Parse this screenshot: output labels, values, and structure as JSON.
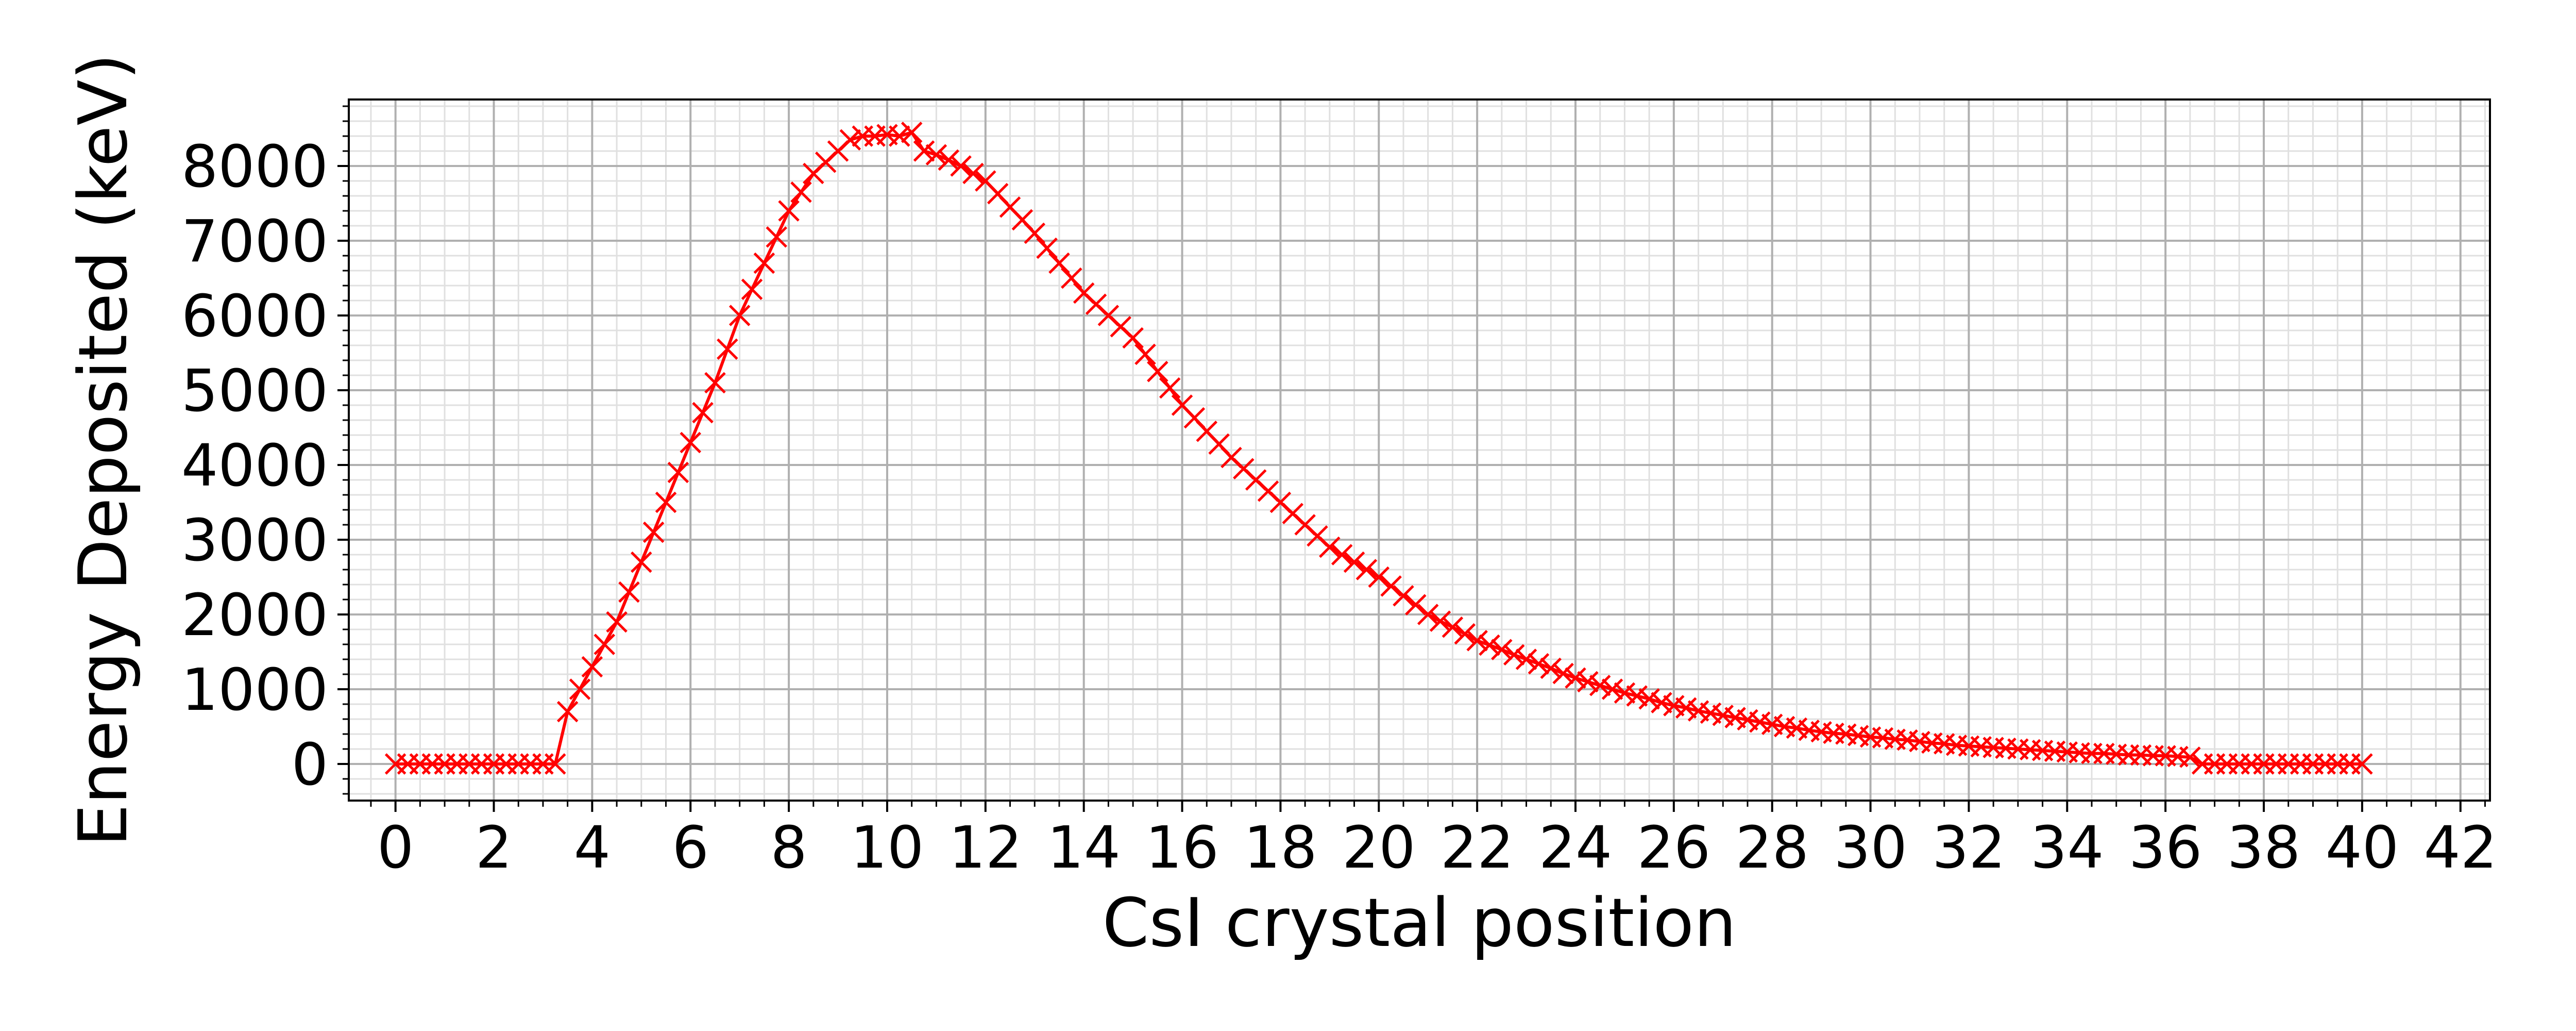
{
  "chart_data": {
    "type": "line",
    "marker": "x",
    "color": "#ff0000",
    "xlabel": "CsI crystal position",
    "ylabel": "Energy Deposited (keV)",
    "xlim": [
      -0.95,
      42.6
    ],
    "ylim": [
      -490,
      8890
    ],
    "xticks": [
      0,
      2,
      4,
      6,
      8,
      10,
      12,
      14,
      16,
      18,
      20,
      22,
      24,
      26,
      28,
      30,
      32,
      34,
      36,
      38,
      40,
      42
    ],
    "yticks": [
      0,
      1000,
      2000,
      3000,
      4000,
      5000,
      6000,
      7000,
      8000
    ],
    "grid": true,
    "minor_grid": true,
    "minor_divisions": {
      "x": 4,
      "y": 5
    },
    "x": [
      0,
      0.25,
      0.5,
      0.75,
      1,
      1.25,
      1.5,
      1.75,
      2,
      2.25,
      2.5,
      2.75,
      3,
      3.25,
      3.5,
      3.75,
      4,
      4.25,
      4.5,
      4.75,
      5,
      5.25,
      5.5,
      5.75,
      6,
      6.25,
      6.5,
      6.75,
      7,
      7.25,
      7.5,
      7.75,
      8,
      8.25,
      8.5,
      8.75,
      9,
      9.25,
      9.5,
      9.75,
      10,
      10.25,
      10.5,
      10.75,
      11,
      11.25,
      11.5,
      11.75,
      12,
      12.25,
      12.5,
      12.75,
      13,
      13.25,
      13.5,
      13.75,
      14,
      14.25,
      14.5,
      14.75,
      15,
      15.25,
      15.5,
      15.75,
      16,
      16.25,
      16.5,
      16.75,
      17,
      17.25,
      17.5,
      17.75,
      18,
      18.25,
      18.5,
      18.75,
      19,
      19.25,
      19.5,
      19.75,
      20,
      20.25,
      20.5,
      20.75,
      21,
      21.25,
      21.5,
      21.75,
      22,
      22.25,
      22.5,
      22.75,
      23,
      23.25,
      23.5,
      23.75,
      24,
      24.25,
      24.5,
      24.75,
      25,
      25.25,
      25.5,
      25.75,
      26,
      26.25,
      26.5,
      26.75,
      27,
      27.25,
      27.5,
      27.75,
      28,
      28.25,
      28.5,
      28.75,
      29,
      29.25,
      29.5,
      29.75,
      30,
      30.25,
      30.5,
      30.75,
      31,
      31.25,
      31.5,
      31.75,
      32,
      32.25,
      32.5,
      32.75,
      33,
      33.25,
      33.5,
      33.75,
      34,
      34.25,
      34.5,
      34.75,
      35,
      35.25,
      35.5,
      35.75,
      36,
      36.25,
      36.5,
      36.75,
      37,
      37.25,
      37.5,
      37.75,
      38,
      38.25,
      38.5,
      38.75,
      39,
      39.25,
      39.5,
      39.75,
      40
    ],
    "values": [
      0,
      0,
      0,
      0,
      0,
      0,
      0,
      0,
      0,
      0,
      0,
      0,
      0,
      0,
      700,
      1000,
      1300,
      1600,
      1900,
      2300,
      2700,
      3100,
      3500,
      3900,
      4300,
      4700,
      5100,
      5550,
      6000,
      6350,
      6700,
      7050,
      7400,
      7650,
      7900,
      8050,
      8200,
      8350,
      8400,
      8400,
      8420,
      8400,
      8450,
      8200,
      8150,
      8080,
      8000,
      7900,
      7800,
      7630,
      7450,
      7280,
      7100,
      6900,
      6700,
      6500,
      6300,
      6150,
      6000,
      5850,
      5700,
      5480,
      5250,
      5030,
      4800,
      4630,
      4450,
      4280,
      4100,
      3950,
      3800,
      3650,
      3500,
      3350,
      3200,
      3050,
      2900,
      2800,
      2700,
      2600,
      2500,
      2380,
      2250,
      2130,
      2000,
      1910,
      1830,
      1740,
      1650,
      1590,
      1530,
      1460,
      1400,
      1340,
      1280,
      1210,
      1150,
      1100,
      1050,
      1000,
      950,
      910,
      870,
      820,
      780,
      750,
      710,
      680,
      650,
      620,
      590,
      560,
      530,
      500,
      480,
      450,
      430,
      410,
      400,
      380,
      360,
      350,
      330,
      320,
      300,
      280,
      270,
      250,
      240,
      230,
      220,
      210,
      200,
      190,
      180,
      170,
      160,
      150,
      140,
      140,
      130,
      120,
      120,
      110,
      110,
      100,
      90,
      0,
      0,
      0,
      0,
      0,
      0,
      0,
      0,
      0,
      0,
      0,
      0,
      0,
      0
    ]
  }
}
